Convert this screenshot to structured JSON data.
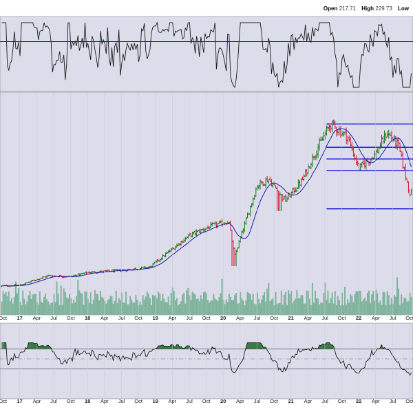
{
  "header": {
    "open_label": "Open",
    "open_value": "217.71",
    "high_label": "High",
    "high_value": "229.73",
    "low_label": "Low"
  },
  "colors": {
    "panel_bg": "#dcdcea",
    "up_bar": "#1a7a1a",
    "down_bar": "#d81b3c",
    "ma_line": "#1a1ab0",
    "volume": "#7fb49c",
    "level_line": "#1111dd",
    "overbought_fill": "#3a7a44",
    "osc_line": "#1a1a1a"
  },
  "chart_data": [
    {
      "type": "line",
      "panel": "top-oscillator",
      "title": "",
      "reference_line": 70,
      "ylim": [
        0,
        100
      ],
      "grid": false
    },
    {
      "type": "ohlc",
      "panel": "price",
      "title": "",
      "x_tick_labels": [
        "Oct",
        "17",
        "Apr",
        "Jul",
        "Oct",
        "18",
        "Apr",
        "Jul",
        "Oct",
        "19",
        "Apr",
        "Jul",
        "Oct",
        "20",
        "Apr",
        "Jul",
        "Oct",
        "21",
        "Apr",
        "Jul",
        "Oct",
        "22",
        "Apr",
        "Jul",
        "Oct"
      ],
      "x_range": [
        "2016-10",
        "2022-10"
      ],
      "moving_average": true,
      "horizontal_levels": [
        180,
        158,
        147,
        136,
        100
      ],
      "ylim": [
        0,
        210
      ],
      "key_points": [
        {
          "date": "2016-09",
          "price": 27
        },
        {
          "date": "2017-01",
          "price": 28
        },
        {
          "date": "2017-06",
          "price": 37
        },
        {
          "date": "2017-10",
          "price": 36
        },
        {
          "date": "2018-01",
          "price": 40
        },
        {
          "date": "2018-07",
          "price": 42
        },
        {
          "date": "2018-12",
          "price": 45
        },
        {
          "date": "2019-03",
          "price": 58
        },
        {
          "date": "2019-07",
          "price": 75
        },
        {
          "date": "2019-11",
          "price": 84
        },
        {
          "date": "2020-02",
          "price": 88
        },
        {
          "date": "2020-03",
          "price": 55
        },
        {
          "date": "2020-07",
          "price": 122
        },
        {
          "date": "2020-09",
          "price": 128
        },
        {
          "date": "2020-12",
          "price": 108
        },
        {
          "date": "2021-03",
          "price": 127
        },
        {
          "date": "2021-05",
          "price": 150
        },
        {
          "date": "2021-08",
          "price": 180
        },
        {
          "date": "2021-11",
          "price": 168
        },
        {
          "date": "2022-01",
          "price": 138
        },
        {
          "date": "2022-04",
          "price": 152
        },
        {
          "date": "2022-06",
          "price": 172
        },
        {
          "date": "2022-08",
          "price": 160
        },
        {
          "date": "2022-10",
          "price": 115
        }
      ]
    },
    {
      "type": "bar",
      "panel": "volume",
      "title": ""
    },
    {
      "type": "line",
      "panel": "bottom-oscillator",
      "title": "",
      "reference_lines": [
        80,
        50,
        20
      ],
      "ylim": [
        0,
        100
      ],
      "grid": false
    }
  ]
}
